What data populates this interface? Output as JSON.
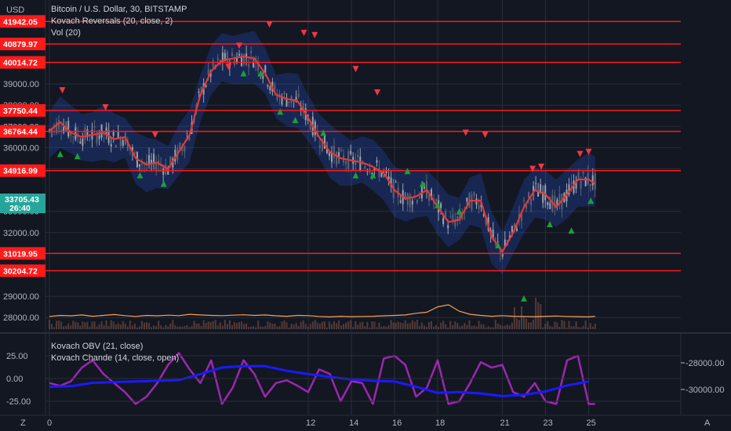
{
  "header": {
    "currency": "USD",
    "symbol_title": "Bitcoin / U.S. Dollar, 30, BITSTAMP",
    "indicator_1": "Kovach Reversals (20, close, 2)",
    "indicator_2": "Vol (20)"
  },
  "price_badge": {
    "price": "33705.43",
    "countdown": "26:40",
    "color": "#26a69a"
  },
  "lower_pane": {
    "indicator_1": "Kovach OBV (21, close)",
    "indicator_2": "Kovach Chande (14, close, open)",
    "left_ticks": [
      "25.00",
      "0.00",
      "-25.00"
    ],
    "right_ticks": [
      "-28000.00",
      "-30000.00"
    ]
  },
  "footer": {
    "left_icon": "Z",
    "right_icon": "A"
  },
  "colors": {
    "background": "#131722",
    "level_line": "#ff1a1a",
    "ma_line": "#e53935",
    "band": "#2962ff",
    "up_marker": "#1e9e3a",
    "down_marker": "#f23645",
    "volume_ma": "#f5a25a",
    "obv": "#1a1aff",
    "chande": "#9c27b0",
    "grid": "#2a2e39"
  },
  "chart_data": [
    {
      "type": "line",
      "title": "Bitcoin / U.S. Dollar, 30, BITSTAMP",
      "x_ticks": [
        "0",
        "12",
        "14",
        "16",
        "18",
        "21",
        "23",
        "25"
      ],
      "y_ticks": [
        28000,
        29000,
        32000,
        33000,
        35000,
        36000,
        37000,
        38000,
        39000
      ],
      "y_range": [
        27500,
        42500
      ],
      "horizontal_levels": [
        41942.05,
        40879.97,
        40014.72,
        37750.44,
        36764.44,
        34916.99,
        31019.95,
        30204.72
      ],
      "series": [
        {
          "name": "Kovach Reversals (20, close, 2)",
          "x": [
            0,
            0.5,
            1,
            1.5,
            2,
            2.5,
            3,
            3.5,
            4,
            4.5,
            5,
            5.5,
            6,
            6.5,
            7,
            7.5,
            8,
            8.5,
            9,
            9.5,
            10,
            10.5,
            11,
            11.5,
            12,
            12.5,
            13,
            13.5,
            14,
            14.5,
            15,
            15.5,
            16,
            16.5,
            17,
            17.5,
            18,
            18.5,
            19,
            19.5,
            20,
            20.5,
            21,
            21.5,
            22,
            22.5,
            23,
            23.5,
            24,
            24.5,
            25,
            25.3
          ],
          "y": [
            36800,
            37200,
            36700,
            36500,
            36600,
            36700,
            36400,
            36500,
            35500,
            35200,
            35300,
            35000,
            35800,
            36600,
            38500,
            39600,
            40100,
            40200,
            40300,
            40200,
            39500,
            38500,
            38300,
            38200,
            37400,
            36500,
            35800,
            35500,
            35400,
            35300,
            35100,
            34800,
            34000,
            33600,
            33700,
            34000,
            33200,
            32500,
            32600,
            33500,
            33500,
            31800,
            31100,
            32000,
            33200,
            34000,
            33800,
            33200,
            33800,
            34500,
            34500,
            34300
          ]
        }
      ],
      "up_markers": [
        [
          0.5,
          35700
        ],
        [
          1.3,
          35600
        ],
        [
          4.2,
          34700
        ],
        [
          5.3,
          34300
        ],
        [
          9.0,
          39500
        ],
        [
          9.8,
          39500
        ],
        [
          10.7,
          37700
        ],
        [
          11.4,
          37300
        ],
        [
          12.7,
          36700
        ],
        [
          14.2,
          34700
        ],
        [
          15.0,
          34700
        ],
        [
          16.6,
          34900
        ],
        [
          17.3,
          34300
        ],
        [
          18.0,
          33300
        ],
        [
          19.0,
          33000
        ],
        [
          20.8,
          31400
        ],
        [
          22.0,
          28900
        ],
        [
          23.2,
          32400
        ],
        [
          24.2,
          32100
        ],
        [
          25.1,
          33500
        ]
      ],
      "down_markers": [
        [
          0.6,
          38700
        ],
        [
          2.6,
          37900
        ],
        [
          4.9,
          36600
        ],
        [
          8.3,
          39800
        ],
        [
          8.8,
          40800
        ],
        [
          10.2,
          41800
        ],
        [
          11.8,
          41400
        ],
        [
          12.3,
          41300
        ],
        [
          14.2,
          39700
        ],
        [
          15.2,
          38600
        ],
        [
          19.3,
          36700
        ],
        [
          20.2,
          36600
        ],
        [
          22.4,
          35000
        ],
        [
          22.8,
          35100
        ],
        [
          24.6,
          35700
        ],
        [
          25.0,
          35800
        ]
      ],
      "volume_ma": [
        28050,
        28100,
        28080,
        28120,
        28060,
        28100,
        28140,
        28090,
        28050,
        28100,
        28080,
        28110,
        28090,
        28150,
        28120,
        28100,
        28090,
        28110,
        28130,
        28100,
        28120,
        28080,
        28060,
        28100,
        28090,
        28050,
        28030,
        28060,
        28040,
        28050,
        28060,
        28080,
        28100,
        28120,
        28200,
        28250,
        28500,
        28600,
        28300,
        28150,
        28100,
        28060,
        28090,
        28060,
        28050,
        28040,
        28060,
        28070,
        28050,
        28040,
        28030,
        28060
      ]
    },
    {
      "type": "line",
      "title": "Kovach OBV (21, close) / Kovach Chande (14, close, open)",
      "x_ticks": [
        "0",
        "12",
        "14",
        "16",
        "18",
        "21",
        "23",
        "25"
      ],
      "left_range": [
        -35,
        35
      ],
      "right_range": [
        -31200,
        -27400
      ],
      "series": [
        {
          "name": "Kovach OBV (21, close)",
          "axis": "right",
          "x": [
            0,
            1,
            2,
            3,
            4,
            5,
            6,
            7,
            8,
            9,
            10,
            11,
            12,
            13,
            14,
            15,
            16,
            17,
            18,
            19,
            20,
            21,
            22,
            23,
            24,
            25
          ],
          "y": [
            -29800,
            -29750,
            -29500,
            -29450,
            -29400,
            -29350,
            -29300,
            -28850,
            -28350,
            -28250,
            -28250,
            -28600,
            -28850,
            -29050,
            -29250,
            -29350,
            -29400,
            -29800,
            -30250,
            -30200,
            -30300,
            -30500,
            -30400,
            -30150,
            -29700,
            -29400
          ]
        },
        {
          "name": "Kovach Chande (14, close, open)",
          "axis": "left",
          "x": [
            0,
            0.5,
            1,
            1.5,
            2,
            2.5,
            3,
            3.5,
            4,
            4.5,
            5,
            5.5,
            6,
            6.5,
            7,
            7.5,
            8,
            8.5,
            9,
            9.5,
            10,
            10.5,
            11,
            11.5,
            12,
            12.5,
            13,
            13.5,
            14,
            14.5,
            15,
            15.5,
            16,
            16.5,
            17,
            17.5,
            18,
            18.5,
            19,
            19.5,
            20,
            20.5,
            21,
            21.5,
            22,
            22.5,
            23,
            23.5,
            24,
            24.5,
            25,
            25.3
          ],
          "y": [
            -5,
            -8,
            -3,
            12,
            20,
            5,
            -5,
            -15,
            -28,
            -20,
            -5,
            15,
            28,
            10,
            -5,
            20,
            -28,
            -10,
            20,
            5,
            -20,
            -5,
            -2,
            -8,
            -15,
            10,
            5,
            -25,
            -3,
            -5,
            -28,
            22,
            25,
            15,
            -20,
            -10,
            20,
            -28,
            -25,
            -5,
            18,
            12,
            15,
            -15,
            -20,
            -5,
            -25,
            -28,
            20,
            25,
            -28,
            -28
          ]
        }
      ]
    }
  ]
}
